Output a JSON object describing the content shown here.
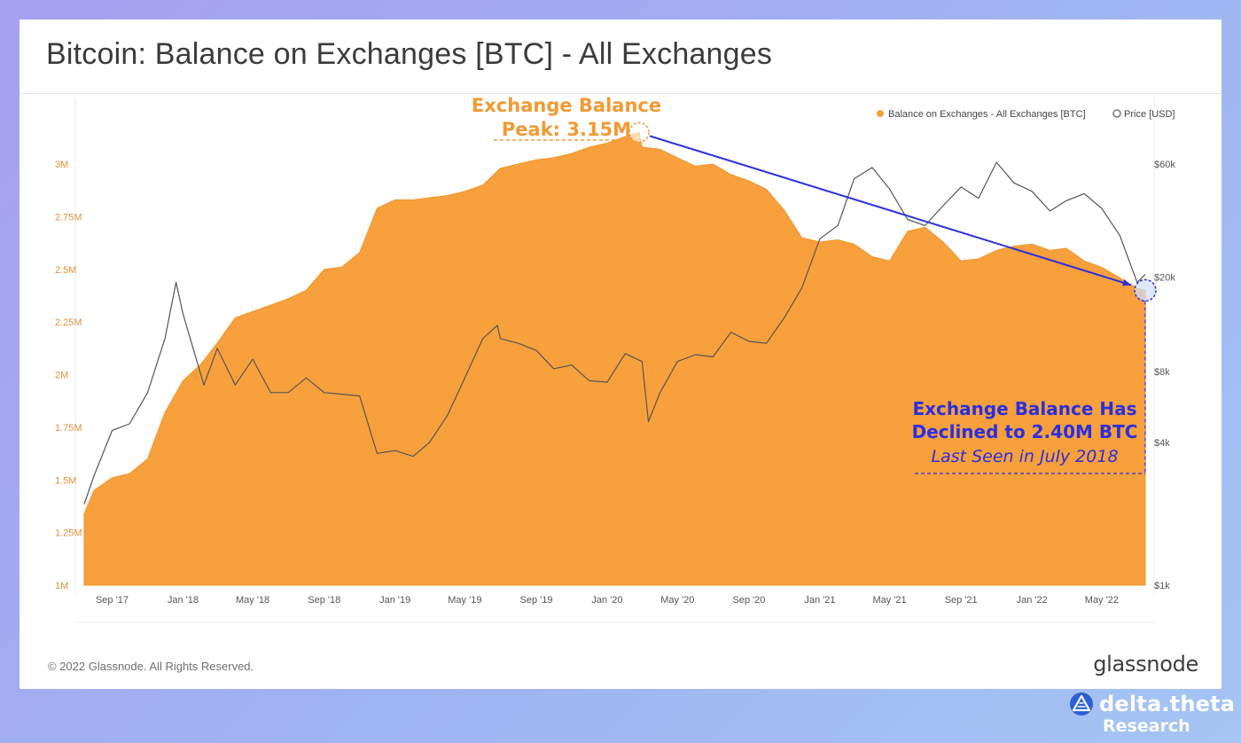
{
  "title": "Bitcoin: Balance on Exchanges [BTC] - All Exchanges",
  "footer": {
    "copyright": "© 2022 Glassnode. All Rights Reserved.",
    "brand": "glassnode"
  },
  "research_logo": {
    "name": "delta.theta",
    "subtitle": "Research",
    "icon": "delta-theta-logo-icon"
  },
  "colors": {
    "balance_fill": "#f7a03c",
    "price_line": "#555555",
    "peak_annotation": "#f29a33",
    "current_annotation": "#2a2fe0"
  },
  "chart_data": {
    "type": "area",
    "title": "Bitcoin: Balance on Exchanges [BTC] - All Exchanges",
    "xlabel": "",
    "ylabel": "",
    "legend_placement": "top-right",
    "grid": false,
    "x_ticks": [
      "Sep '17",
      "Jan '18",
      "May '18",
      "Sep '18",
      "Jan '19",
      "May '19",
      "Sep '19",
      "Jan '20",
      "May '20",
      "Sep '20",
      "Jan '21",
      "May '21",
      "Sep '21",
      "Jan '22",
      "May '22"
    ],
    "x_range": [
      "2017-07-15",
      "2022-07-15"
    ],
    "y_left": {
      "ticks": [
        "1M",
        "1.25M",
        "1.5M",
        "1.75M",
        "2M",
        "2.25M",
        "2.5M",
        "2.75M",
        "3M"
      ],
      "min": 1000000,
      "max": 3000000,
      "scale": "linear"
    },
    "y_right": {
      "ticks": [
        "$1k",
        "$4k",
        "$8k",
        "$20k",
        "$60k"
      ],
      "tick_values": [
        1000,
        4000,
        8000,
        20000,
        60000
      ],
      "min": 1000,
      "max": 60000,
      "scale": "log"
    },
    "series": [
      {
        "name": "Balance on Exchanges - All Exchanges [BTC]",
        "type": "area",
        "axis": "left",
        "x": [
          "2017-07-15",
          "2017-08-01",
          "2017-09-01",
          "2017-10-01",
          "2017-11-01",
          "2017-12-01",
          "2018-01-01",
          "2018-02-01",
          "2018-03-01",
          "2018-04-01",
          "2018-05-01",
          "2018-06-01",
          "2018-07-01",
          "2018-08-01",
          "2018-09-01",
          "2018-10-01",
          "2018-11-01",
          "2018-12-01",
          "2019-01-01",
          "2019-02-01",
          "2019-03-01",
          "2019-04-01",
          "2019-05-01",
          "2019-06-01",
          "2019-07-01",
          "2019-08-01",
          "2019-09-01",
          "2019-10-01",
          "2019-11-01",
          "2019-12-01",
          "2020-01-01",
          "2020-02-01",
          "2020-02-25",
          "2020-03-01",
          "2020-04-01",
          "2020-05-01",
          "2020-06-01",
          "2020-07-01",
          "2020-08-01",
          "2020-09-01",
          "2020-10-01",
          "2020-11-01",
          "2020-12-01",
          "2021-01-01",
          "2021-02-01",
          "2021-03-01",
          "2021-04-01",
          "2021-05-01",
          "2021-06-01",
          "2021-07-01",
          "2021-08-01",
          "2021-09-01",
          "2021-10-01",
          "2021-11-01",
          "2021-12-01",
          "2022-01-01",
          "2022-02-01",
          "2022-03-01",
          "2022-04-01",
          "2022-05-01",
          "2022-06-01",
          "2022-07-01",
          "2022-07-15"
        ],
        "values": [
          1340000,
          1450000,
          1510000,
          1530000,
          1600000,
          1820000,
          1970000,
          2050000,
          2150000,
          2270000,
          2300000,
          2330000,
          2360000,
          2400000,
          2500000,
          2510000,
          2580000,
          2790000,
          2830000,
          2830000,
          2840000,
          2850000,
          2870000,
          2900000,
          2980000,
          3000000,
          3020000,
          3030000,
          3050000,
          3080000,
          3100000,
          3130000,
          3150000,
          3080000,
          3070000,
          3030000,
          2990000,
          3000000,
          2950000,
          2920000,
          2880000,
          2780000,
          2650000,
          2630000,
          2640000,
          2620000,
          2560000,
          2540000,
          2680000,
          2700000,
          2630000,
          2540000,
          2550000,
          2590000,
          2610000,
          2620000,
          2590000,
          2600000,
          2540000,
          2510000,
          2460000,
          2410000,
          2400000
        ]
      },
      {
        "name": "Price [USD]",
        "type": "line",
        "axis": "right",
        "x": [
          "2017-07-15",
          "2017-08-01",
          "2017-09-01",
          "2017-10-01",
          "2017-11-01",
          "2017-12-01",
          "2017-12-20",
          "2018-01-01",
          "2018-02-06",
          "2018-03-01",
          "2018-04-01",
          "2018-05-01",
          "2018-06-01",
          "2018-07-01",
          "2018-08-01",
          "2018-09-01",
          "2018-10-01",
          "2018-11-01",
          "2018-12-01",
          "2019-01-01",
          "2019-02-01",
          "2019-03-01",
          "2019-04-01",
          "2019-05-01",
          "2019-06-01",
          "2019-06-26",
          "2019-07-01",
          "2019-08-01",
          "2019-09-01",
          "2019-10-01",
          "2019-11-01",
          "2019-12-01",
          "2020-01-01",
          "2020-02-01",
          "2020-03-01",
          "2020-03-12",
          "2020-04-01",
          "2020-05-01",
          "2020-06-01",
          "2020-07-01",
          "2020-08-01",
          "2020-09-01",
          "2020-10-01",
          "2020-11-01",
          "2020-12-01",
          "2021-01-01",
          "2021-02-01",
          "2021-03-01",
          "2021-04-01",
          "2021-05-01",
          "2021-06-01",
          "2021-07-01",
          "2021-08-01",
          "2021-09-01",
          "2021-10-01",
          "2021-11-01",
          "2021-12-01",
          "2022-01-01",
          "2022-02-01",
          "2022-03-01",
          "2022-04-01",
          "2022-05-01",
          "2022-06-01",
          "2022-07-01",
          "2022-07-15"
        ],
        "values": [
          2200,
          2900,
          4500,
          4800,
          6500,
          11000,
          19000,
          14000,
          7000,
          10000,
          7000,
          9000,
          6500,
          6500,
          7500,
          6500,
          6400,
          6300,
          3600,
          3700,
          3500,
          4000,
          5200,
          7500,
          11000,
          12500,
          11000,
          10500,
          9800,
          8200,
          8500,
          7300,
          7200,
          9500,
          8800,
          4900,
          6500,
          8800,
          9400,
          9200,
          11700,
          10700,
          10500,
          13500,
          18000,
          29000,
          33000,
          52000,
          58000,
          47000,
          35000,
          33000,
          40000,
          48000,
          43000,
          61000,
          50000,
          46000,
          38000,
          42000,
          45000,
          39000,
          30000,
          19000,
          20500
        ]
      }
    ],
    "annotations": {
      "peak": {
        "line1": "Exchange Balance",
        "line2": "Peak: 3.15M",
        "x": "2020-02-25",
        "y": 3150000
      },
      "current": {
        "line1": "Exchange Balance Has",
        "line2": "Declined to 2.40M BTC",
        "line3": "Last Seen in July 2018",
        "x": "2022-07-15",
        "y": 2400000
      }
    }
  }
}
